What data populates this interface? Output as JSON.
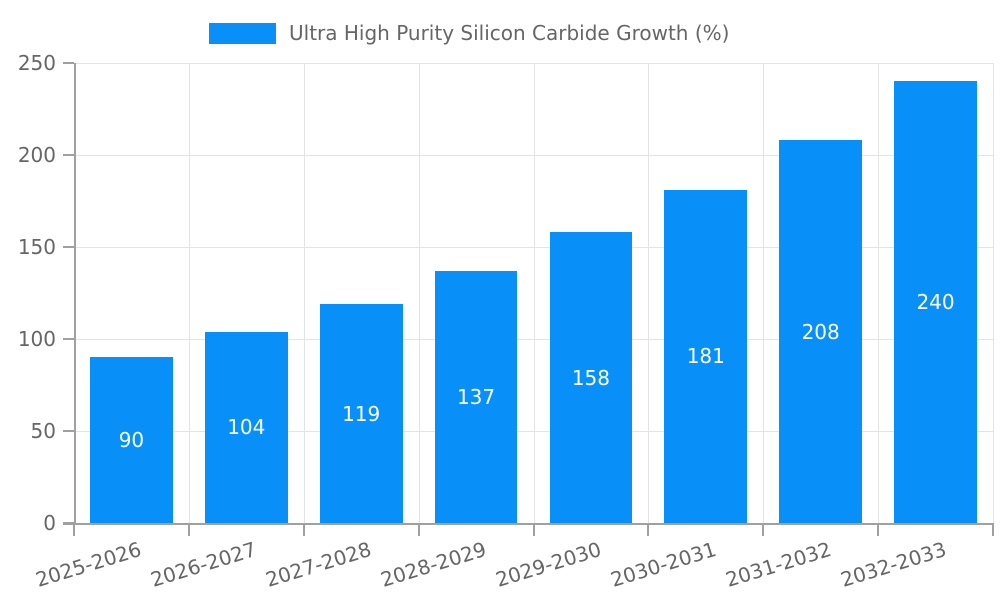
{
  "chart_data": {
    "type": "bar",
    "legend_label": "Ultra High Purity Silicon Carbide Growth (%)",
    "legend_position": "top",
    "categories": [
      "2025-2026",
      "2026-2027",
      "2027-2028",
      "2028-2029",
      "2029-2030",
      "2030-2031",
      "2031-2032",
      "2032-2033"
    ],
    "values": [
      90,
      104,
      119,
      137,
      158,
      181,
      208,
      240
    ],
    "title": "",
    "xlabel": "",
    "ylabel": "",
    "ylim": [
      0,
      250
    ],
    "yticks": [
      0,
      50,
      100,
      150,
      200,
      250
    ],
    "grid": true,
    "bar_color": "#0890f8",
    "value_label_color": "#ffffff",
    "tick_label_color": "#666666",
    "x_label_rotation_deg": -17
  }
}
